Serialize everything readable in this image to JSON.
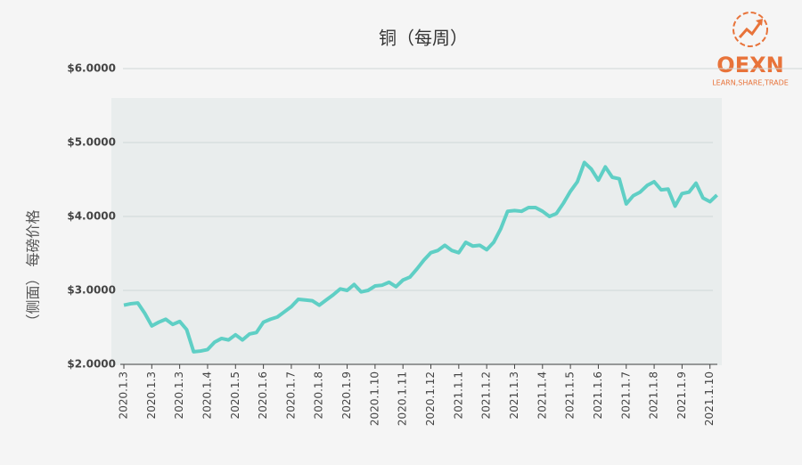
{
  "chart_data": {
    "type": "line",
    "title": "铜（每周）",
    "y_label": "（侧面） 每磅价格",
    "categories": [
      "2020.1.3",
      null,
      null,
      null,
      "2020.1.3",
      null,
      null,
      null,
      "2020.1.3",
      null,
      null,
      null,
      "2020.1.4",
      null,
      null,
      null,
      "2020.1.5",
      null,
      null,
      null,
      "2020.1.6",
      null,
      null,
      null,
      "2020.1.7",
      null,
      null,
      null,
      "2020.1.8",
      null,
      null,
      null,
      "2020.1.9",
      null,
      null,
      null,
      "2020.1.10",
      null,
      null,
      null,
      "2020.1.11",
      null,
      null,
      null,
      "2020.1.12",
      null,
      null,
      null,
      "2021.1.1",
      null,
      null,
      null,
      "2021.1.2",
      null,
      null,
      null,
      "2021.1.3",
      null,
      null,
      null,
      "2021.1.4",
      null,
      null,
      null,
      "2021.1.5",
      null,
      null,
      null,
      "2021.1.6",
      null,
      null,
      null,
      "2021.1.7",
      null,
      null,
      null,
      "2021.1.8",
      null,
      null,
      null,
      "2021.1.9",
      null,
      null,
      null,
      "2021.1.10",
      null
    ],
    "values": [
      2.8,
      2.82,
      2.83,
      2.69,
      2.52,
      2.57,
      2.61,
      2.54,
      2.58,
      2.47,
      2.17,
      2.18,
      2.2,
      2.3,
      2.35,
      2.33,
      2.4,
      2.33,
      2.41,
      2.43,
      2.57,
      2.61,
      2.64,
      2.71,
      2.78,
      2.88,
      2.87,
      2.86,
      2.8,
      2.87,
      2.94,
      3.02,
      3.0,
      3.08,
      2.98,
      3.0,
      3.06,
      3.07,
      3.11,
      3.05,
      3.14,
      3.18,
      3.29,
      3.41,
      3.51,
      3.54,
      3.61,
      3.54,
      3.51,
      3.65,
      3.6,
      3.61,
      3.55,
      3.65,
      3.83,
      4.07,
      4.08,
      4.07,
      4.12,
      4.12,
      4.07,
      4.0,
      4.04,
      4.18,
      4.34,
      4.47,
      4.73,
      4.64,
      4.49,
      4.67,
      4.53,
      4.51,
      4.17,
      4.28,
      4.33,
      4.42,
      4.47,
      4.36,
      4.37,
      4.14,
      4.31,
      4.33,
      4.45,
      4.25,
      4.2,
      4.29
    ],
    "color": "#5fcfc5",
    "ylim": [
      2,
      6
    ],
    "yticks": [
      {
        "value": 2,
        "label": "$2.0000"
      },
      {
        "value": 3,
        "label": "$3.0000"
      },
      {
        "value": 4,
        "label": "$4.0000"
      },
      {
        "value": 5,
        "label": "$5.0000"
      },
      {
        "value": 6,
        "label": "$6.0000"
      }
    ],
    "grid": true
  },
  "logo": {
    "name": "OEXN",
    "tagline": "LEARN,SHARE,TRADE"
  }
}
